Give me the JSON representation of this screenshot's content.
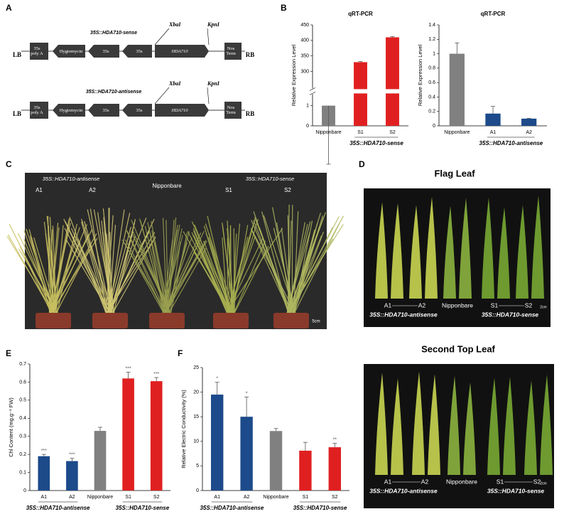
{
  "panel_labels": [
    "A",
    "B",
    "C",
    "D",
    "E",
    "F"
  ],
  "panel_a": {
    "constructs": [
      {
        "title": "35S::HDA710-sense",
        "left_border": "LB",
        "right_border": "RB",
        "sites": [
          "XbaI",
          "KpnI"
        ],
        "elements": [
          "35s poly A",
          "Hygtomycin",
          "35s",
          "35s",
          "HDA710",
          "Nos Term"
        ]
      },
      {
        "title": "35S::HDA710-antisense",
        "left_border": "LB",
        "right_border": "RB",
        "sites": [
          "XbaI",
          "KpnI"
        ],
        "elements": [
          "35s poly A",
          "Hygtomycin",
          "35s",
          "35s",
          "HDA710",
          "Nos Term"
        ]
      }
    ]
  },
  "panel_c": {
    "groups": [
      "35S::HDA710-antisense",
      "35S::HDA710-sense"
    ],
    "labels": [
      "A1",
      "A2",
      "Nipponbare",
      "S1",
      "S2"
    ],
    "scale": "5cm"
  },
  "panel_d": [
    {
      "title": "Flag Leaf",
      "labels": [
        "A1",
        "A2",
        "Nipponbare",
        "S1",
        "S2"
      ],
      "groups": [
        "35S::HDA710-antisense",
        "35S::HDA710-sense"
      ],
      "scale": "2cm"
    },
    {
      "title": "Second Top Leaf",
      "labels": [
        "A1",
        "A2",
        "Nipponbare",
        "S1",
        "S2"
      ],
      "groups": [
        "35S::HDA710-antisense",
        "35S::HDA710-sense"
      ],
      "scale": "2cm"
    }
  ],
  "chart_data": [
    {
      "type": "bar",
      "title": "qRT-PCR",
      "y_label": "Relative Expression Level",
      "categories": [
        "Nipponbare",
        "S1",
        "S2"
      ],
      "values": [
        1,
        330,
        410
      ],
      "errors": [
        0.6,
        2,
        2
      ],
      "colors": [
        "#808080",
        "#e02020",
        "#e02020"
      ],
      "ylim": [
        0,
        450
      ],
      "ybreak": [
        1.5,
        250
      ],
      "yticks": [
        0,
        1,
        300,
        350,
        400,
        450
      ],
      "group_labels": [
        {
          "label": "35S::HDA710-sense",
          "members": [
            "S1",
            "S2"
          ]
        }
      ]
    },
    {
      "type": "bar",
      "title": "qRT-PCR",
      "y_label": "Relative Expression Level",
      "categories": [
        "Nipponbare",
        "A1",
        "A2"
      ],
      "values": [
        1,
        0.17,
        0.1
      ],
      "errors": [
        0.15,
        0.1,
        0.005
      ],
      "colors": [
        "#808080",
        "#1c4a8a",
        "#1c4a8a"
      ],
      "ylim": [
        0,
        1.4
      ],
      "yticks": [
        0,
        0.2,
        0.4,
        0.6,
        0.8,
        1,
        1.2,
        1.4
      ],
      "group_labels": [
        {
          "label": "35S::HDA710-antisense",
          "members": [
            "A1",
            "A2"
          ]
        }
      ]
    },
    {
      "type": "bar",
      "y_label": "Chl Content (mg.g⁻¹ FW)",
      "categories": [
        "A1",
        "A2",
        "Nipponbare",
        "S1",
        "S2"
      ],
      "values": [
        0.19,
        0.163,
        0.33,
        0.62,
        0.605
      ],
      "errors": [
        0.01,
        0.015,
        0.02,
        0.035,
        0.02
      ],
      "annotations": [
        "***",
        "***",
        null,
        "***",
        "***"
      ],
      "colors": [
        "#1c4a8a",
        "#1c4a8a",
        "#808080",
        "#e02020",
        "#e02020"
      ],
      "ylim": [
        0,
        0.7
      ],
      "yticks": [
        0,
        0.1,
        0.2,
        0.3,
        0.4,
        0.5,
        0.6,
        0.7
      ],
      "group_labels": [
        {
          "label": "35S::HDA710-antisense",
          "members": [
            "A1",
            "A2"
          ]
        },
        {
          "label": "35S::HDA710-sense",
          "members": [
            "S1",
            "S2"
          ]
        }
      ]
    },
    {
      "type": "bar",
      "y_label": "Relative Electric Conductivity (%)",
      "categories": [
        "A1",
        "A2",
        "Nipponbare",
        "S1",
        "S2"
      ],
      "values": [
        19.5,
        15,
        12.1,
        8.1,
        8.8
      ],
      "errors": [
        2.5,
        4,
        0.5,
        1.7,
        0.8
      ],
      "annotations": [
        "*",
        "*",
        null,
        null,
        "**"
      ],
      "colors": [
        "#1c4a8a",
        "#1c4a8a",
        "#808080",
        "#e02020",
        "#e02020"
      ],
      "ylim": [
        0,
        25
      ],
      "yticks": [
        0,
        5,
        10,
        15,
        20,
        25
      ],
      "group_labels": [
        {
          "label": "35S::HDA710-antisense",
          "members": [
            "A1",
            "A2"
          ]
        },
        {
          "label": "35S::HDA710-sense",
          "members": [
            "S1",
            "S2"
          ]
        }
      ]
    }
  ]
}
